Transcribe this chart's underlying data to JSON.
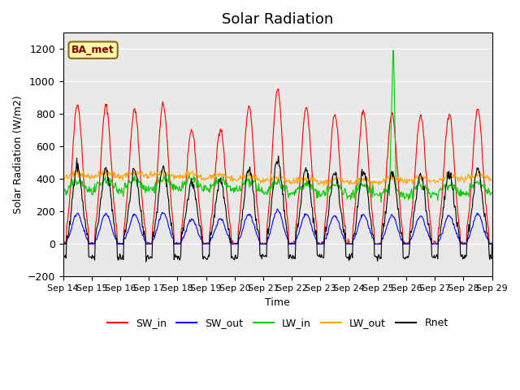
{
  "title": "Solar Radiation",
  "ylabel": "Solar Radiation (W/m2)",
  "xlabel": "Time",
  "ylim": [
    -200,
    1300
  ],
  "yticks": [
    -200,
    0,
    200,
    400,
    600,
    800,
    1000,
    1200
  ],
  "label_box": "BA_met",
  "legend": [
    "SW_in",
    "SW_out",
    "LW_in",
    "LW_out",
    "Rnet"
  ],
  "colors": {
    "SW_in": "#FF0000",
    "SW_out": "#0000FF",
    "LW_in": "#00CC00",
    "LW_out": "#FFA500",
    "Rnet": "#000000"
  },
  "xtick_labels": [
    "Sep 14",
    "Sep 15",
    "Sep 16",
    "Sep 17",
    "Sep 18",
    "Sep 19",
    "Sep 20",
    "Sep 21",
    "Sep 22",
    "Sep 23",
    "Sep 24",
    "Sep 25",
    "Sep 26",
    "Sep 27",
    "Sep 28",
    "Sep 29"
  ],
  "n_days": 15,
  "points_per_day": 48,
  "background_color": "#E8E8E8",
  "fig_color": "#FFFFFF"
}
